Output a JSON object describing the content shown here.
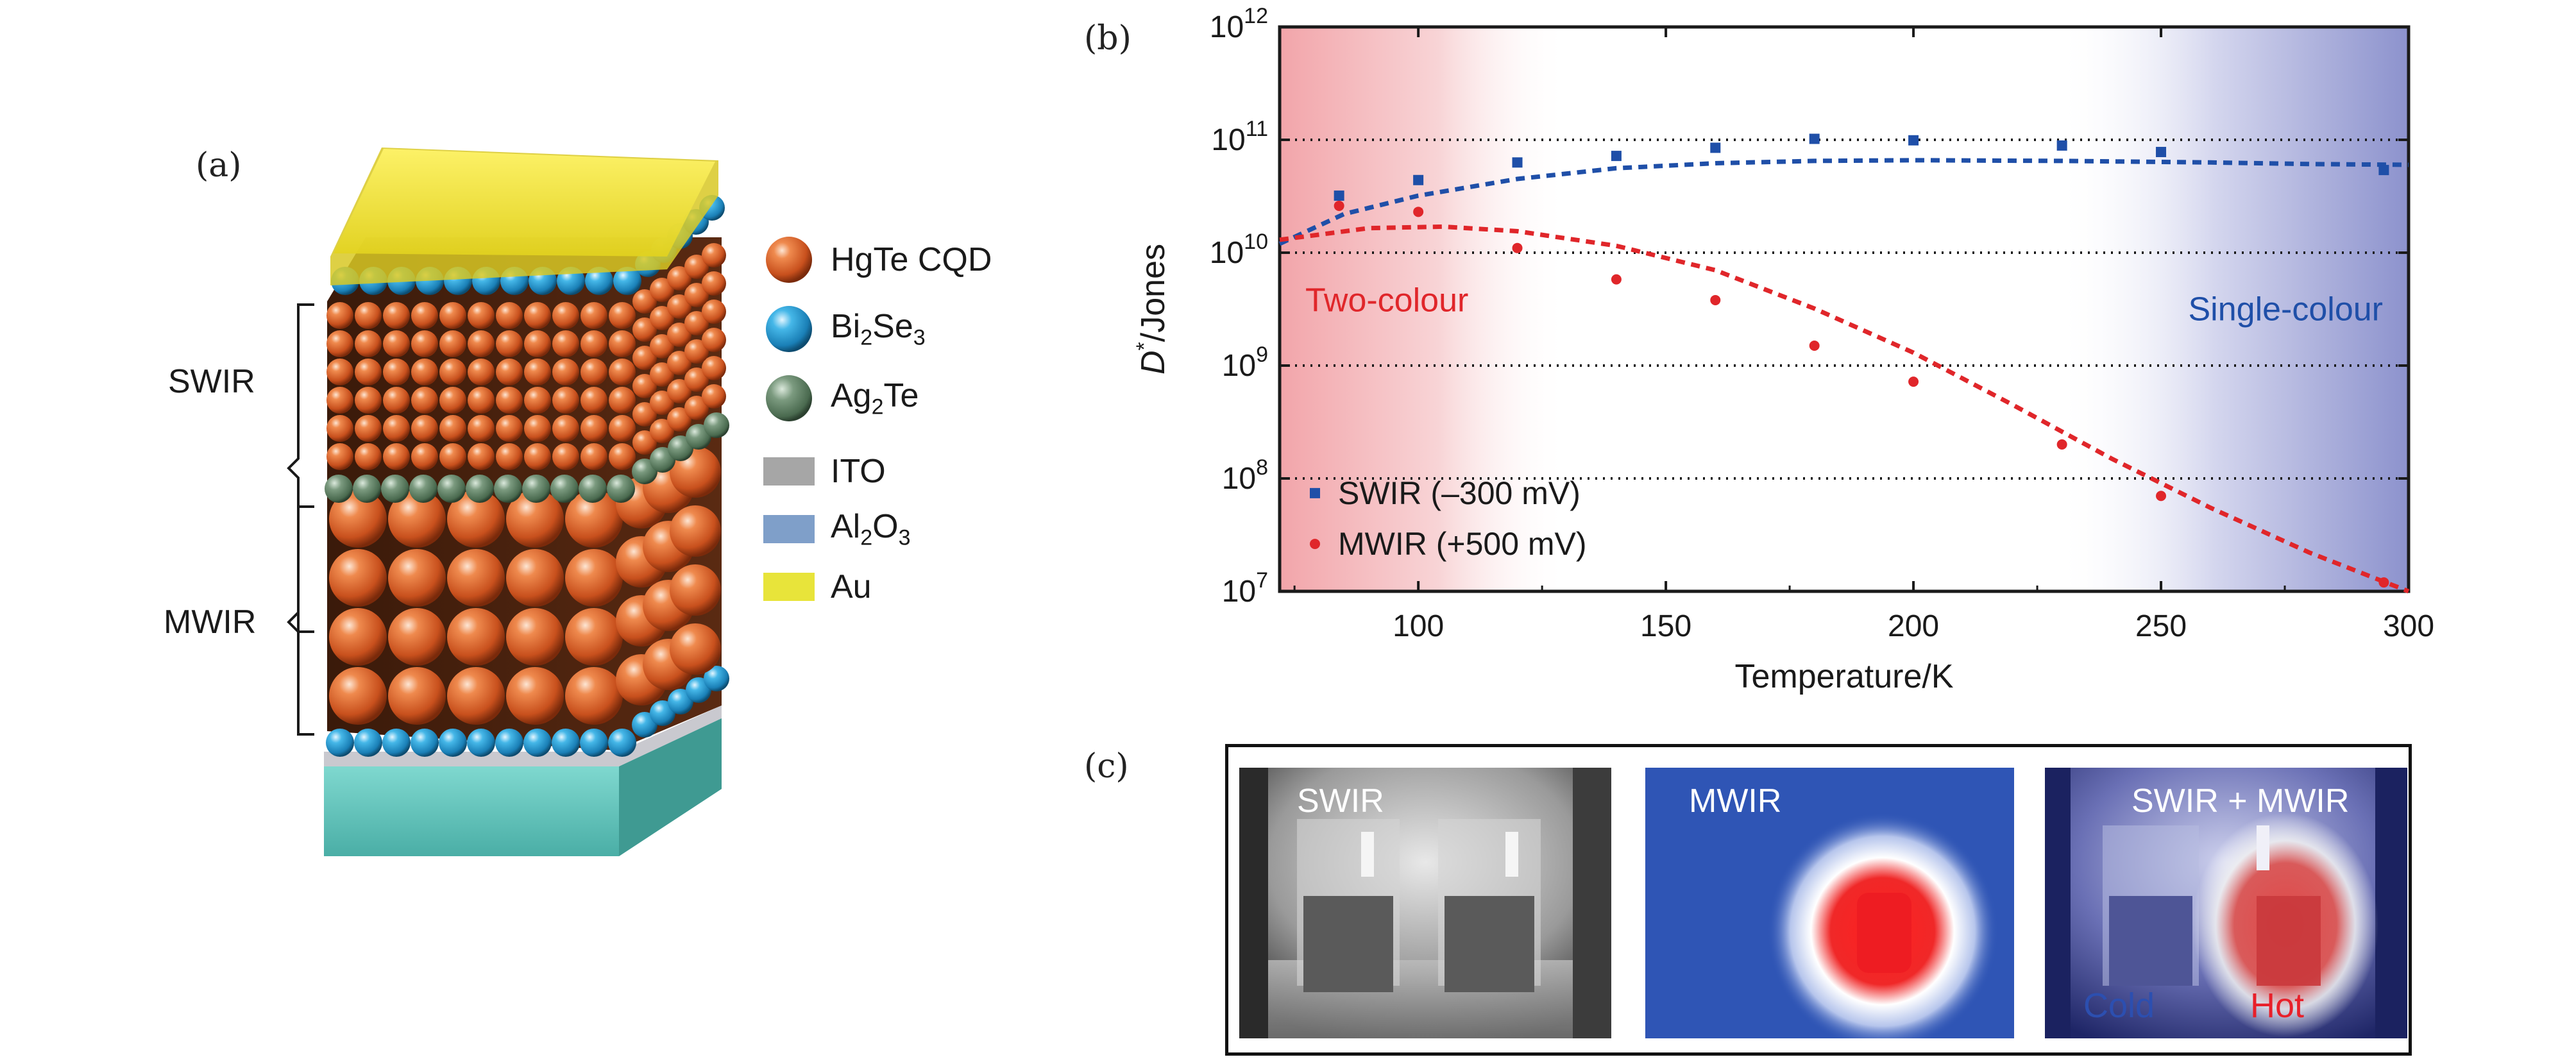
{
  "panel_labels": {
    "a": "(a)",
    "b": "(b)",
    "c": "(c)"
  },
  "panel_a": {
    "legend": [
      {
        "text": "HgTe CQD",
        "icon": "hgte-cqd-sphere-icon",
        "color": "#d4622c"
      },
      {
        "text_main": "Bi",
        "sub1": "2",
        "text_mid": "Se",
        "sub2": "3",
        "icon": "bi2se3-sphere-icon",
        "color": "#2a9fd6"
      },
      {
        "text_main": "Ag",
        "sub1": "2",
        "text_mid": "Te",
        "sub2": "",
        "icon": "ag2te-sphere-icon",
        "color": "#5d7f62"
      },
      {
        "text": "ITO",
        "icon": "ito-swatch-icon",
        "color": "#a6a6a6"
      },
      {
        "text_main": "Al",
        "sub1": "2",
        "text_mid": "O",
        "sub2": "3",
        "icon": "al2o3-swatch-icon",
        "color": "#7f9fc9"
      },
      {
        "text": "Au",
        "icon": "au-swatch-icon",
        "color": "#e8e43a"
      }
    ],
    "brackets": {
      "swir": "SWIR",
      "mwir": "MWIR"
    }
  },
  "chart_data": {
    "type": "scatter",
    "xlabel": "Temperature/K",
    "ylabel_main": "D",
    "ylabel_sup": "*",
    "ylabel_rest": "/Jones",
    "xlim": [
      72,
      300
    ],
    "ylim_log10": [
      7,
      12
    ],
    "y_scale": "log",
    "x_ticks": [
      100,
      150,
      200,
      250,
      300
    ],
    "y_tick_exponents": [
      7,
      8,
      9,
      10,
      11,
      12
    ],
    "y_tick_base": "10",
    "grid": "horizontal dotted at 10^8, 10^9, 10^10, 10^11",
    "region_labels": {
      "left": "Two-colour",
      "right": "Single-colour"
    },
    "series": [
      {
        "name": "SWIR (–300 mV)",
        "color": "#1f4fa8",
        "marker": "square",
        "points": [
          [
            84,
            32000000000.0
          ],
          [
            100,
            44000000000.0
          ],
          [
            120,
            63000000000.0
          ],
          [
            140,
            72000000000.0
          ],
          [
            160,
            85000000000.0
          ],
          [
            180,
            102000000000.0
          ],
          [
            200,
            99000000000.0
          ],
          [
            230,
            89000000000.0
          ],
          [
            250,
            78000000000.0
          ],
          [
            295,
            54000000000.0
          ]
        ],
        "fit": [
          [
            72,
            12000000000.0
          ],
          [
            85,
            22000000000.0
          ],
          [
            100,
            32000000000.0
          ],
          [
            120,
            45000000000.0
          ],
          [
            140,
            56000000000.0
          ],
          [
            160,
            62000000000.0
          ],
          [
            180,
            65000000000.0
          ],
          [
            200,
            66000000000.0
          ],
          [
            230,
            65000000000.0
          ],
          [
            260,
            63000000000.0
          ],
          [
            280,
            61000000000.0
          ],
          [
            300,
            60000000000.0
          ]
        ]
      },
      {
        "name": "MWIR (+500 mV)",
        "color": "#e0262a",
        "marker": "circle",
        "points": [
          [
            84,
            26000000000.0
          ],
          [
            100,
            23000000000.0
          ],
          [
            120,
            11000000000.0
          ],
          [
            140,
            5800000000.0
          ],
          [
            160,
            3800000000.0
          ],
          [
            180,
            1500000000.0
          ],
          [
            200,
            720000000.0
          ],
          [
            230,
            200000000.0
          ],
          [
            250,
            70000000.0
          ],
          [
            295,
            12000000.0
          ]
        ],
        "fit": [
          [
            72,
            13000000000.0
          ],
          [
            90,
            16500000000.0
          ],
          [
            105,
            17000000000.0
          ],
          [
            120,
            15500000000.0
          ],
          [
            140,
            11500000000.0
          ],
          [
            160,
            7000000000.0
          ],
          [
            180,
            3200000000.0
          ],
          [
            200,
            1300000000.0
          ],
          [
            220,
            450000000.0
          ],
          [
            240,
            150000000.0
          ],
          [
            260,
            55000000.0
          ],
          [
            280,
            22000000.0
          ],
          [
            300,
            10000000.0
          ]
        ]
      }
    ]
  },
  "panel_c": {
    "images": [
      {
        "label": "SWIR",
        "icon": "swir-thermal-image"
      },
      {
        "label": "MWIR",
        "icon": "mwir-thermal-image"
      },
      {
        "label": "SWIR + MWIR",
        "icon": "combined-thermal-image"
      }
    ],
    "captions": {
      "cold": "Cold",
      "hot": "Hot"
    },
    "colors": {
      "cold": "#2c4fb0",
      "hot": "#e8202a"
    }
  }
}
